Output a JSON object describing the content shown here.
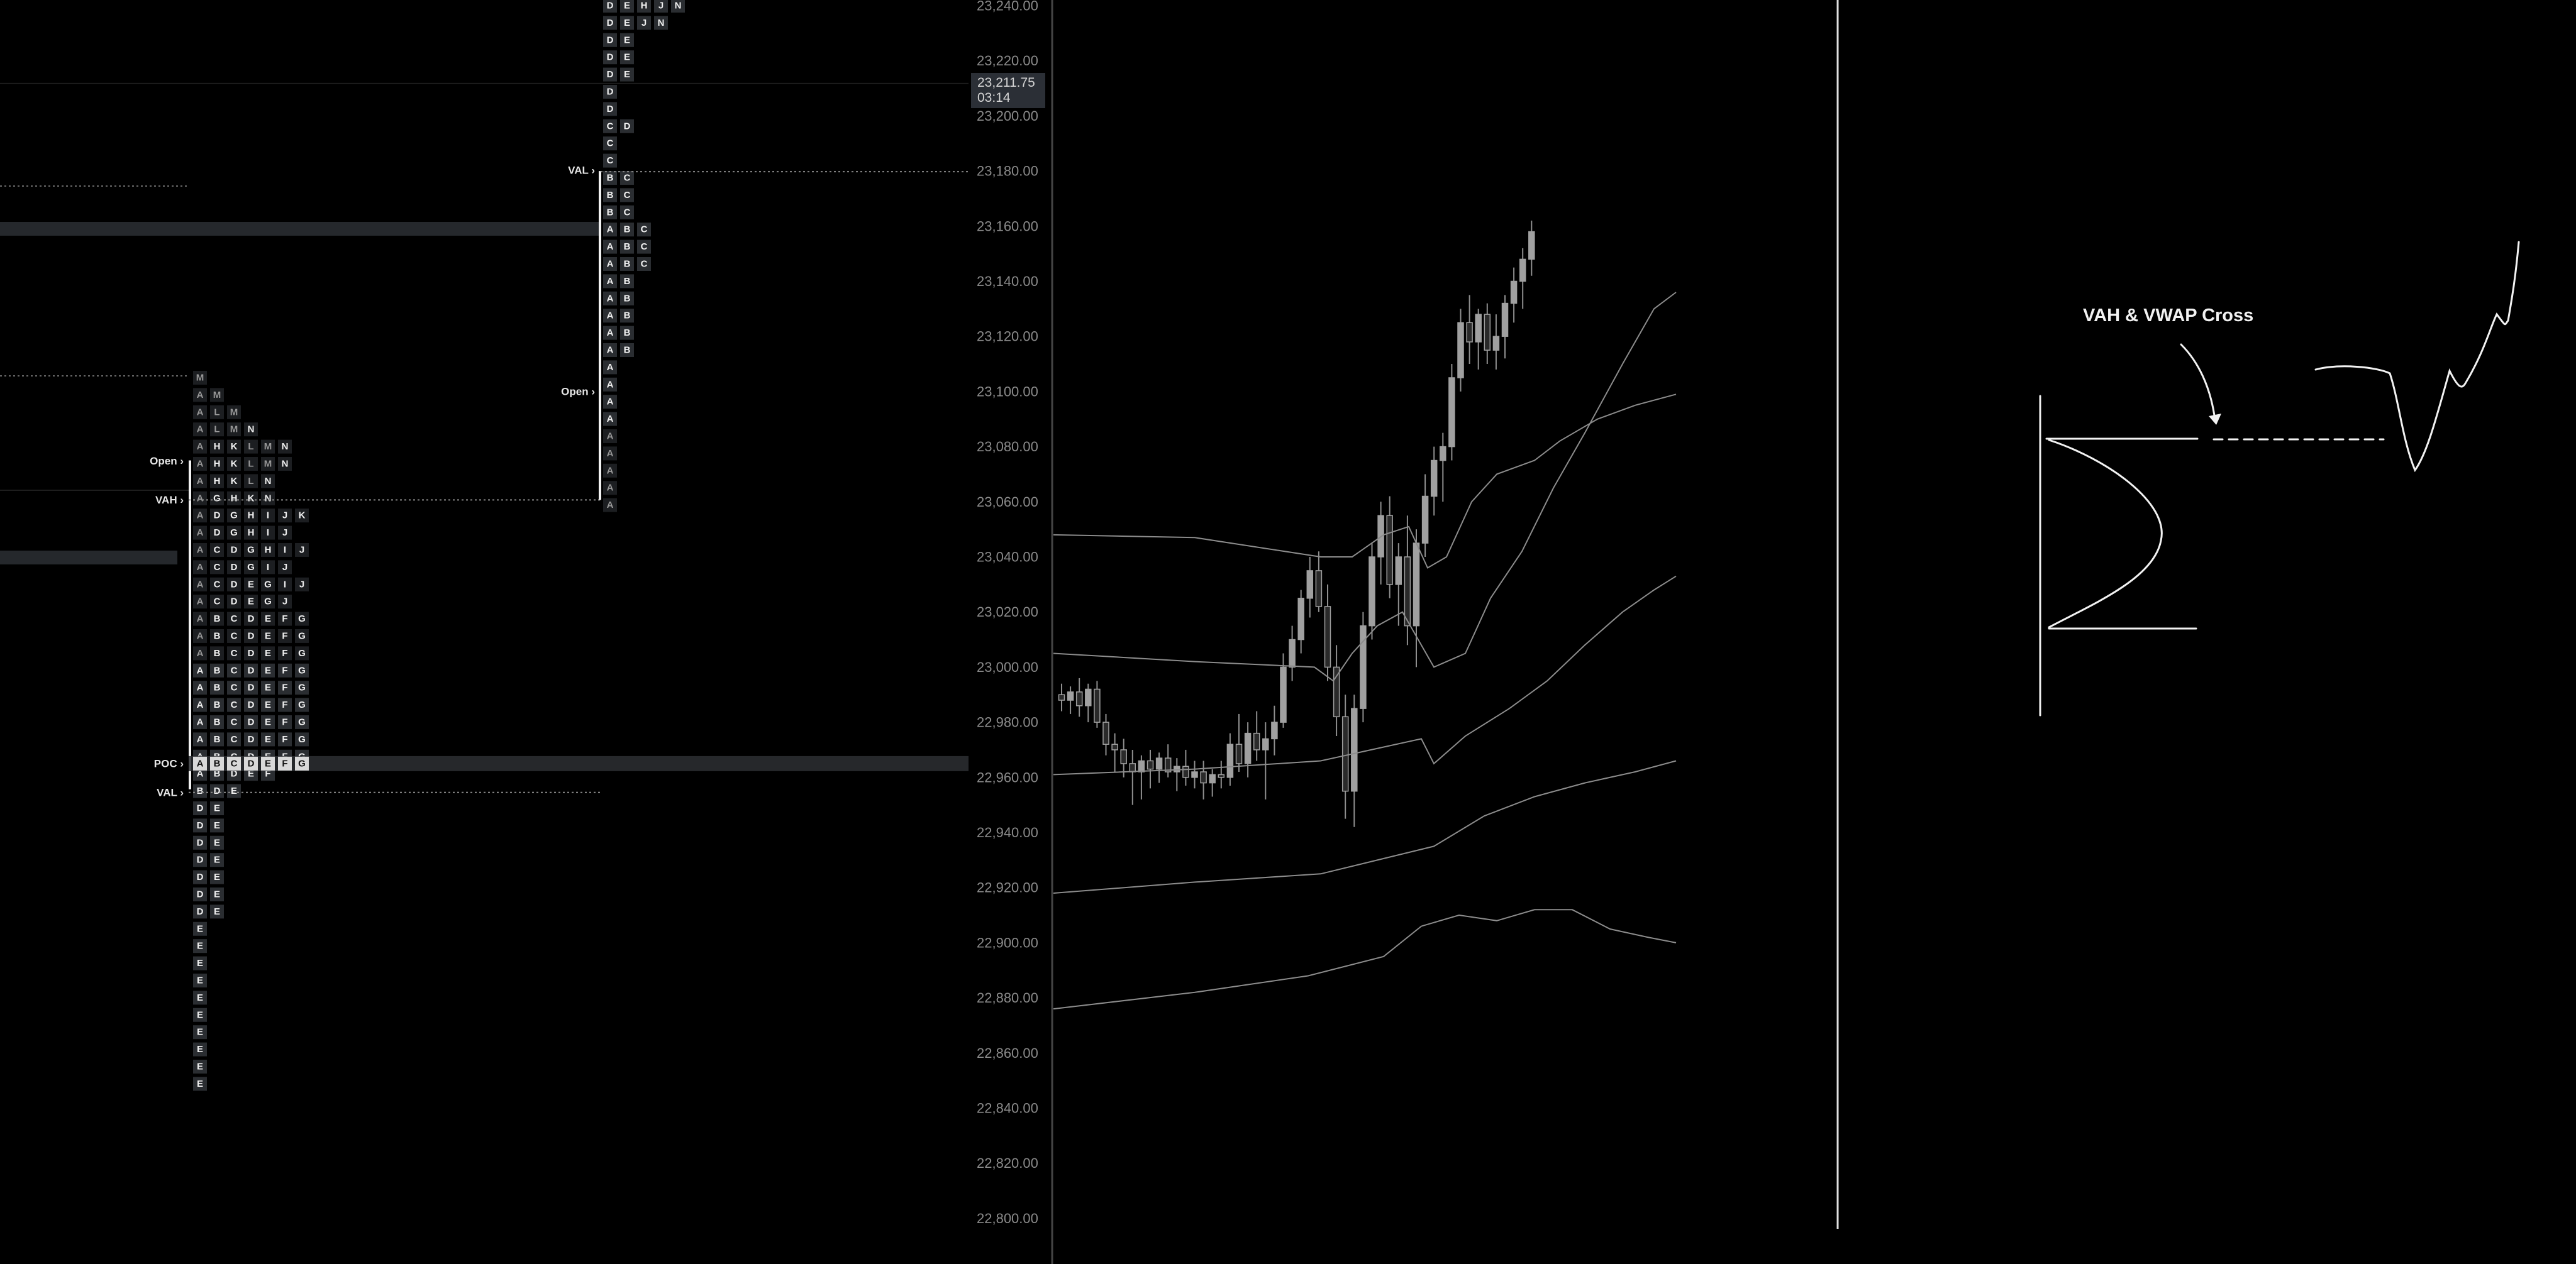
{
  "price_axis": {
    "min": 22800,
    "max": 23240,
    "tick_labels": [
      "23,240.00",
      "23,220.00",
      "23,200.00",
      "23,180.00",
      "23,160.00",
      "23,140.00",
      "23,120.00",
      "23,100.00",
      "23,080.00",
      "23,060.00",
      "23,040.00",
      "23,020.00",
      "23,000.00",
      "22,980.00",
      "22,960.00",
      "22,940.00",
      "22,920.00",
      "22,900.00",
      "22,880.00",
      "22,860.00",
      "22,840.00",
      "22,820.00",
      "22,800.00"
    ],
    "tick_values": [
      23240,
      23220,
      23200,
      23180,
      23160,
      23140,
      23120,
      23100,
      23080,
      23060,
      23040,
      23020,
      23000,
      22980,
      22960,
      22940,
      22920,
      22900,
      22880,
      22860,
      22840,
      22820,
      22800
    ]
  },
  "current_price": {
    "price_text": "23,211.75",
    "timer_text": "03:14",
    "value": 23211.75
  },
  "profile_prev": {
    "high": 23105,
    "rows": [
      "M",
      "AM",
      "ALM",
      "ALMN",
      "AHKLMN",
      "AHKLMN",
      "AHKLN",
      "AGHKN",
      "ADGHIJK",
      "ADGHIJ",
      "ACDGHIJ",
      "ACDGIJ",
      "ACDEGIJ",
      "ACDEGJ",
      "ABCDEFG",
      "ABCDEFG",
      "ABCDEFG",
      "ABCDEFG",
      "ABCDEFG",
      "ABCDEFG",
      "ABCDEFG",
      "ABCDEFG",
      "ABCDEFG",
      "ABDEF",
      "BDE",
      "DE",
      "DE",
      "DE",
      "DE",
      "DE",
      "DE",
      "DE",
      "E",
      "E",
      "E",
      "E",
      "E",
      "E",
      "E",
      "E",
      "E",
      "E"
    ],
    "open_label": "Open",
    "open_price": 23075,
    "vah_label": "VAH",
    "vah": 23062.5,
    "val_label": "VAL",
    "val": 22957.5,
    "poc_label": "POC",
    "poc": 22965
  },
  "profile_curr": {
    "high": 23240,
    "rows": [
      "DEHJN",
      "DEJN",
      "DE",
      "DE",
      "DE",
      "D",
      "D",
      "CD",
      "C",
      "C",
      "BC",
      "BC",
      "BC",
      "ABC",
      "ABC",
      "ABC",
      "AB",
      "AB",
      "AB",
      "AB",
      "AB",
      "A",
      "A",
      "A",
      "A",
      "A",
      "A",
      "A",
      "A",
      "A"
    ],
    "open_label": "Open",
    "open_price": 23100,
    "val_label": "VAL",
    "val": 23180
  },
  "candles": [
    [
      22990,
      22994,
      22984,
      22988
    ],
    [
      22988,
      22993,
      22983,
      22991
    ],
    [
      22991,
      22996,
      22982,
      22986
    ],
    [
      22986,
      22994,
      22980,
      22992
    ],
    [
      22992,
      22995,
      22978,
      22980
    ],
    [
      22980,
      22983,
      22968,
      22972
    ],
    [
      22972,
      22976,
      22962,
      22970
    ],
    [
      22970,
      22974,
      22960,
      22965
    ],
    [
      22965,
      22970,
      22950,
      22962
    ],
    [
      22962,
      22968,
      22952,
      22966
    ],
    [
      22966,
      22970,
      22956,
      22963
    ],
    [
      22963,
      22969,
      22958,
      22967
    ],
    [
      22967,
      22972,
      22960,
      22962
    ],
    [
      22962,
      22967,
      22955,
      22964
    ],
    [
      22964,
      22970,
      22957,
      22960
    ],
    [
      22960,
      22966,
      22956,
      22962
    ],
    [
      22962,
      22966,
      22952,
      22958
    ],
    [
      22958,
      22963,
      22953,
      22961
    ],
    [
      22961,
      22966,
      22956,
      22960
    ],
    [
      22960,
      22976,
      22957,
      22972
    ],
    [
      22972,
      22983,
      22962,
      22965
    ],
    [
      22965,
      22980,
      22960,
      22976
    ],
    [
      22976,
      22984,
      22966,
      22970
    ],
    [
      22970,
      22980,
      22952,
      22974
    ],
    [
      22974,
      22986,
      22968,
      22980
    ],
    [
      22980,
      23005,
      22978,
      23000
    ],
    [
      23000,
      23015,
      22995,
      23010
    ],
    [
      23010,
      23028,
      23005,
      23025
    ],
    [
      23025,
      23040,
      23018,
      23035
    ],
    [
      23035,
      23042,
      23020,
      23022
    ],
    [
      23022,
      23030,
      22995,
      23000
    ],
    [
      23000,
      23008,
      22975,
      22982
    ],
    [
      22982,
      22990,
      22945,
      22955
    ],
    [
      22955,
      22990,
      22942,
      22985
    ],
    [
      22985,
      23020,
      22980,
      23015
    ],
    [
      23015,
      23045,
      23010,
      23040
    ],
    [
      23040,
      23060,
      23030,
      23055
    ],
    [
      23055,
      23062,
      23025,
      23030
    ],
    [
      23030,
      23045,
      23015,
      23040
    ],
    [
      23040,
      23055,
      23008,
      23015
    ],
    [
      23015,
      23050,
      23000,
      23045
    ],
    [
      23045,
      23070,
      23040,
      23062
    ],
    [
      23062,
      23080,
      23055,
      23075
    ],
    [
      23075,
      23085,
      23060,
      23080
    ],
    [
      23080,
      23110,
      23075,
      23105
    ],
    [
      23105,
      23130,
      23100,
      23125
    ],
    [
      23125,
      23135,
      23110,
      23118
    ],
    [
      23118,
      23130,
      23108,
      23128
    ],
    [
      23128,
      23132,
      23110,
      23115
    ],
    [
      23115,
      23128,
      23108,
      23120
    ],
    [
      23120,
      23135,
      23112,
      23132
    ],
    [
      23132,
      23145,
      23125,
      23140
    ],
    [
      23140,
      23152,
      23130,
      23148
    ],
    [
      23148,
      23162,
      23142,
      23158
    ]
  ],
  "annotation": {
    "title": "VAH & VWAP Cross"
  },
  "colors": {
    "background": "#000000",
    "text": "#e6e6e6",
    "muted_text": "#8a8a8a",
    "poc_highlight": "#2d2f33",
    "candle": "#9a9a9a",
    "band": "#8c8c8c"
  }
}
